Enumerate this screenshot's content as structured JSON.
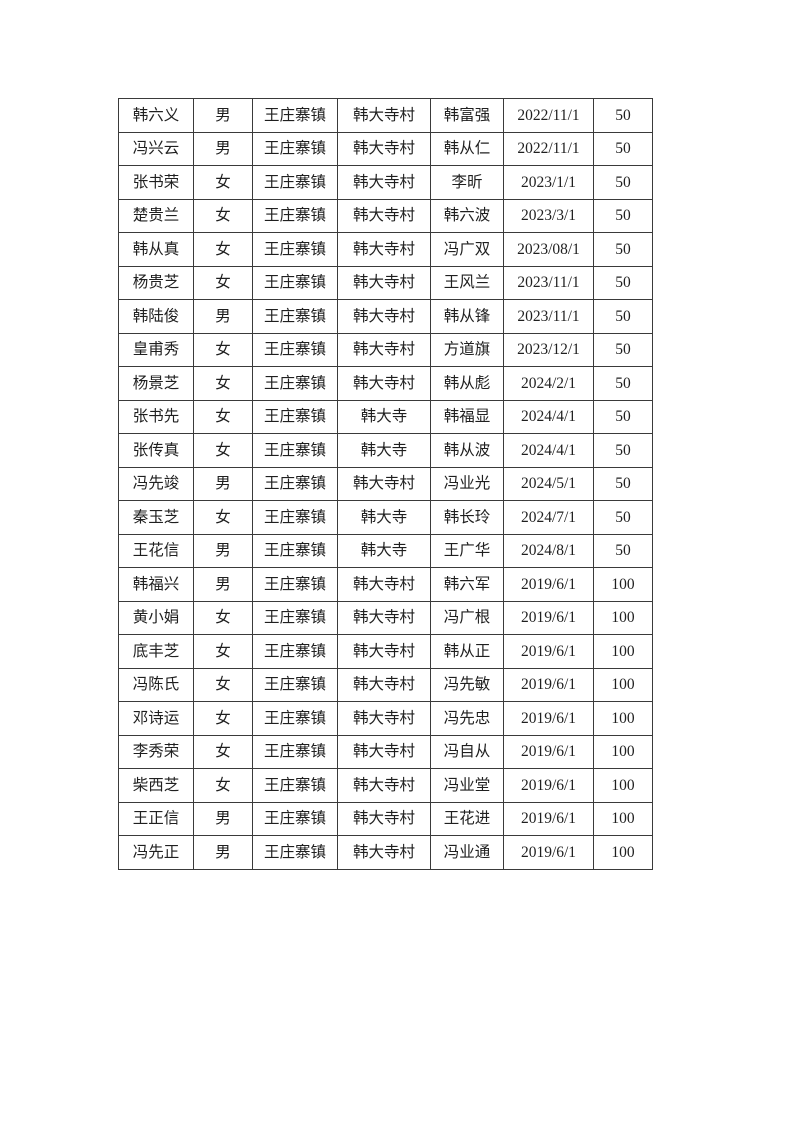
{
  "page": {
    "background_color": "#ffffff",
    "border_color": "#3a3a3a"
  },
  "table": {
    "rows": [
      [
        "韩六义",
        "男",
        "王庄寨镇",
        "韩大寺村",
        "韩富强",
        "2022/11/1",
        "50"
      ],
      [
        "冯兴云",
        "男",
        "王庄寨镇",
        "韩大寺村",
        "韩从仁",
        "2022/11/1",
        "50"
      ],
      [
        "张书荣",
        "女",
        "王庄寨镇",
        "韩大寺村",
        "李昕",
        "2023/1/1",
        "50"
      ],
      [
        "楚贵兰",
        "女",
        "王庄寨镇",
        "韩大寺村",
        "韩六波",
        "2023/3/1",
        "50"
      ],
      [
        "韩从真",
        "女",
        "王庄寨镇",
        "韩大寺村",
        "冯广双",
        "2023/08/1",
        "50"
      ],
      [
        "杨贵芝",
        "女",
        "王庄寨镇",
        "韩大寺村",
        "王风兰",
        "2023/11/1",
        "50"
      ],
      [
        "韩陆俊",
        "男",
        "王庄寨镇",
        "韩大寺村",
        "韩从锋",
        "2023/11/1",
        "50"
      ],
      [
        "皇甫秀",
        "女",
        "王庄寨镇",
        "韩大寺村",
        "方道旗",
        "2023/12/1",
        "50"
      ],
      [
        "杨景芝",
        "女",
        "王庄寨镇",
        "韩大寺村",
        "韩从彪",
        "2024/2/1",
        "50"
      ],
      [
        "张书先",
        "女",
        "王庄寨镇",
        "韩大寺",
        "韩福显",
        "2024/4/1",
        "50"
      ],
      [
        "张传真",
        "女",
        "王庄寨镇",
        "韩大寺",
        "韩从波",
        "2024/4/1",
        "50"
      ],
      [
        "冯先竣",
        "男",
        "王庄寨镇",
        "韩大寺村",
        "冯业光",
        "2024/5/1",
        "50"
      ],
      [
        "秦玉芝",
        "女",
        "王庄寨镇",
        "韩大寺",
        "韩长玲",
        "2024/7/1",
        "50"
      ],
      [
        "王花信",
        "男",
        "王庄寨镇",
        "韩大寺",
        "王广华",
        "2024/8/1",
        "50"
      ],
      [
        "韩福兴",
        "男",
        "王庄寨镇",
        "韩大寺村",
        "韩六军",
        "2019/6/1",
        "100"
      ],
      [
        "黄小娟",
        "女",
        "王庄寨镇",
        "韩大寺村",
        "冯广根",
        "2019/6/1",
        "100"
      ],
      [
        "底丰芝",
        "女",
        "王庄寨镇",
        "韩大寺村",
        "韩从正",
        "2019/6/1",
        "100"
      ],
      [
        "冯陈氏",
        "女",
        "王庄寨镇",
        "韩大寺村",
        "冯先敏",
        "2019/6/1",
        "100"
      ],
      [
        "邓诗运",
        "女",
        "王庄寨镇",
        "韩大寺村",
        "冯先忠",
        "2019/6/1",
        "100"
      ],
      [
        "李秀荣",
        "女",
        "王庄寨镇",
        "韩大寺村",
        "冯自从",
        "2019/6/1",
        "100"
      ],
      [
        "柴西芝",
        "女",
        "王庄寨镇",
        "韩大寺村",
        "冯业堂",
        "2019/6/1",
        "100"
      ],
      [
        "王正信",
        "男",
        "王庄寨镇",
        "韩大寺村",
        "王花进",
        "2019/6/1",
        "100"
      ],
      [
        "冯先正",
        "男",
        "王庄寨镇",
        "韩大寺村",
        "冯业通",
        "2019/6/1",
        "100"
      ]
    ]
  }
}
